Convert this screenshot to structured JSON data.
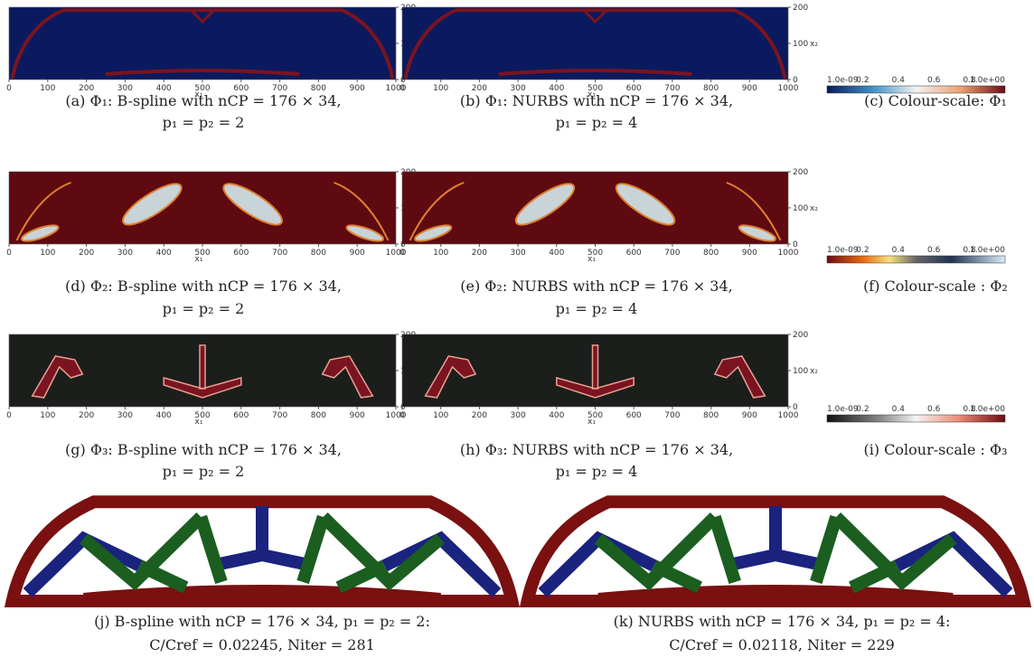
{
  "axis": {
    "xticks": [
      0,
      100,
      200,
      300,
      400,
      500,
      600,
      700,
      800,
      900,
      1000
    ],
    "yticks": [
      0,
      100,
      200
    ],
    "xlabel": "x₁",
    "ylabel": "x₂"
  },
  "colorbar_ticks": [
    "1.0e-09",
    "0.2",
    "0.4",
    "0.6",
    "0.8",
    "1.0e+00"
  ],
  "panels": [
    {
      "caption": [
        "(a)  Φ₁: B-spline with nCP = 176 × 34,",
        "p₁ = p₂ = 2"
      ]
    },
    {
      "caption": [
        "(b)  Φ₁: NURBS with nCP = 176 × 34,",
        "p₁ = p₂ = 4"
      ]
    },
    {
      "caption": [
        "(c)  Colour-scale: Φ₁"
      ]
    },
    {
      "caption": [
        "(d)  Φ₂: B-spline with nCP = 176 × 34,",
        "p₁ = p₂ = 2"
      ]
    },
    {
      "caption": [
        "(e)  Φ₂: NURBS with nCP = 176 × 34,",
        "p₁ = p₂ = 4"
      ]
    },
    {
      "caption": [
        "(f)  Colour-scale : Φ₂"
      ]
    },
    {
      "caption": [
        "(g)  Φ₃: B-spline with nCP = 176 × 34,",
        "p₁ = p₂ = 2"
      ]
    },
    {
      "caption": [
        "(h)  Φ₃: NURBS with nCP = 176 × 34,",
        "p₁ = p₂ = 4"
      ]
    },
    {
      "caption": [
        "(i)  Colour-scale : Φ₃"
      ]
    },
    {
      "caption": [
        "(j)  B-spline with nCP = 176 × 34, p₁ = p₂ = 2:",
        "C/Cref = 0.02245, Niter = 281"
      ]
    },
    {
      "caption": [
        "(k)  NURBS with nCP = 176 × 34, p₁ = p₂ = 4:",
        "C/Cref = 0.02118, Niter = 229"
      ]
    }
  ]
}
